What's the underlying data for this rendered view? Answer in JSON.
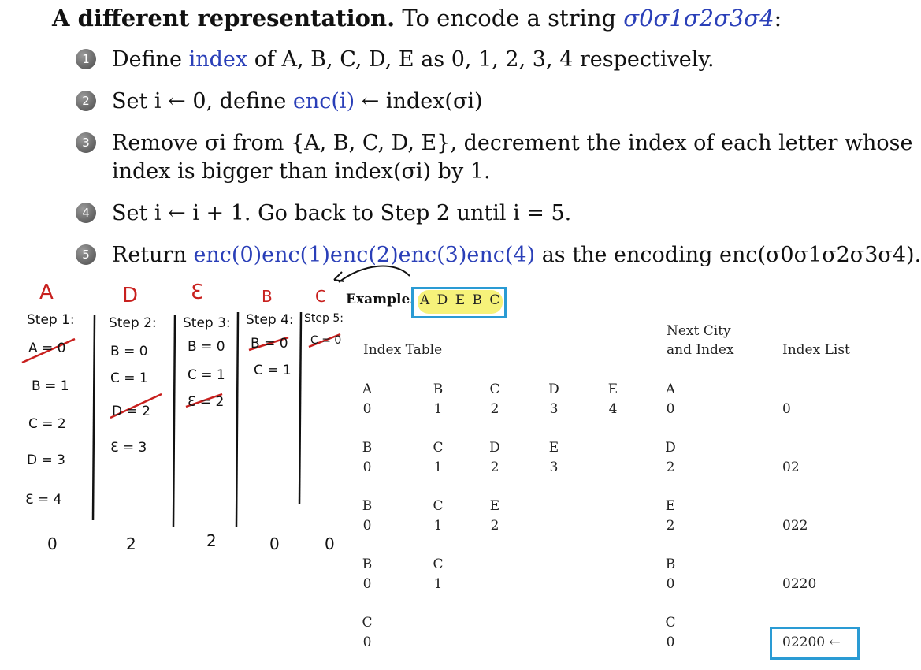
{
  "title": {
    "bold": "A different representation.",
    "rest": "To encode a string",
    "string": "σ0σ1σ2σ3σ4",
    "colon": ":"
  },
  "steps": [
    {
      "num": "1",
      "parts": [
        "Define ",
        "index",
        " of A, B, C, D, E as 0, 1, 2, 3, 4 respectively."
      ]
    },
    {
      "num": "2",
      "parts": [
        "Set i ← 0, define ",
        "enc(i)",
        " ← index(σi)"
      ]
    },
    {
      "num": "3",
      "line1": "Remove σi from {A, B, C, D, E}, decrement the index of each letter whose",
      "line2": "index is bigger than index(σi) by 1."
    },
    {
      "num": "4",
      "text": "Set i ← i + 1. Go back to Step 2 until i = 5."
    },
    {
      "num": "5",
      "parts": [
        "Return ",
        "enc(0)enc(1)enc(2)enc(3)enc(4)",
        " as the encoding enc(σ0σ1σ2σ3σ4)."
      ]
    }
  ],
  "handwritten": {
    "letters": [
      "A",
      "D",
      "Ɛ",
      "B",
      "C"
    ],
    "columns": [
      {
        "head": "Step 1:",
        "entries": [
          "A = 0",
          "B = 1",
          "C = 2",
          "D = 3",
          "Ɛ = 4"
        ],
        "result": "0"
      },
      {
        "head": "Step 2:",
        "entries": [
          "B = 0",
          "C = 1",
          "D = 2",
          "Ɛ = 3"
        ],
        "result": "2"
      },
      {
        "head": "Step 3:",
        "entries": [
          "B = 0",
          "C = 1",
          "Ɛ = 2"
        ],
        "result": "2"
      },
      {
        "head": "Step 4:",
        "entries": [
          "B = 0",
          "C = 1"
        ],
        "result": "0"
      },
      {
        "head": "Step 5:",
        "entries": [
          "C = 0"
        ],
        "result": "0"
      }
    ]
  },
  "example": {
    "label": "Example.",
    "value": "A D E B C"
  },
  "table": {
    "head_index_table": "Index Table",
    "head_next_line1": "Next City",
    "head_next_line2": "and Index",
    "head_index_list": "Index List",
    "rows": [
      {
        "letters": [
          "A",
          "B",
          "C",
          "D",
          "E"
        ],
        "indices": [
          "0",
          "1",
          "2",
          "3",
          "4"
        ],
        "next_letter": "A",
        "next_index": "0",
        "list": "0"
      },
      {
        "letters": [
          "B",
          "C",
          "D",
          "E"
        ],
        "indices": [
          "0",
          "1",
          "2",
          "3"
        ],
        "next_letter": "D",
        "next_index": "2",
        "list": "02"
      },
      {
        "letters": [
          "B",
          "C",
          "E"
        ],
        "indices": [
          "0",
          "1",
          "2"
        ],
        "next_letter": "E",
        "next_index": "2",
        "list": "022"
      },
      {
        "letters": [
          "B",
          "C"
        ],
        "indices": [
          "0",
          "1"
        ],
        "next_letter": "B",
        "next_index": "0",
        "list": "0220"
      },
      {
        "letters": [
          "C"
        ],
        "indices": [
          "0"
        ],
        "next_letter": "C",
        "next_index": "0",
        "list": "02200 ←"
      }
    ]
  },
  "colors": {
    "blue_text": "#2a3fb8",
    "red_ink": "#c8201e",
    "box_blue": "#2a9bd4",
    "highlight": "#f6f27a"
  }
}
